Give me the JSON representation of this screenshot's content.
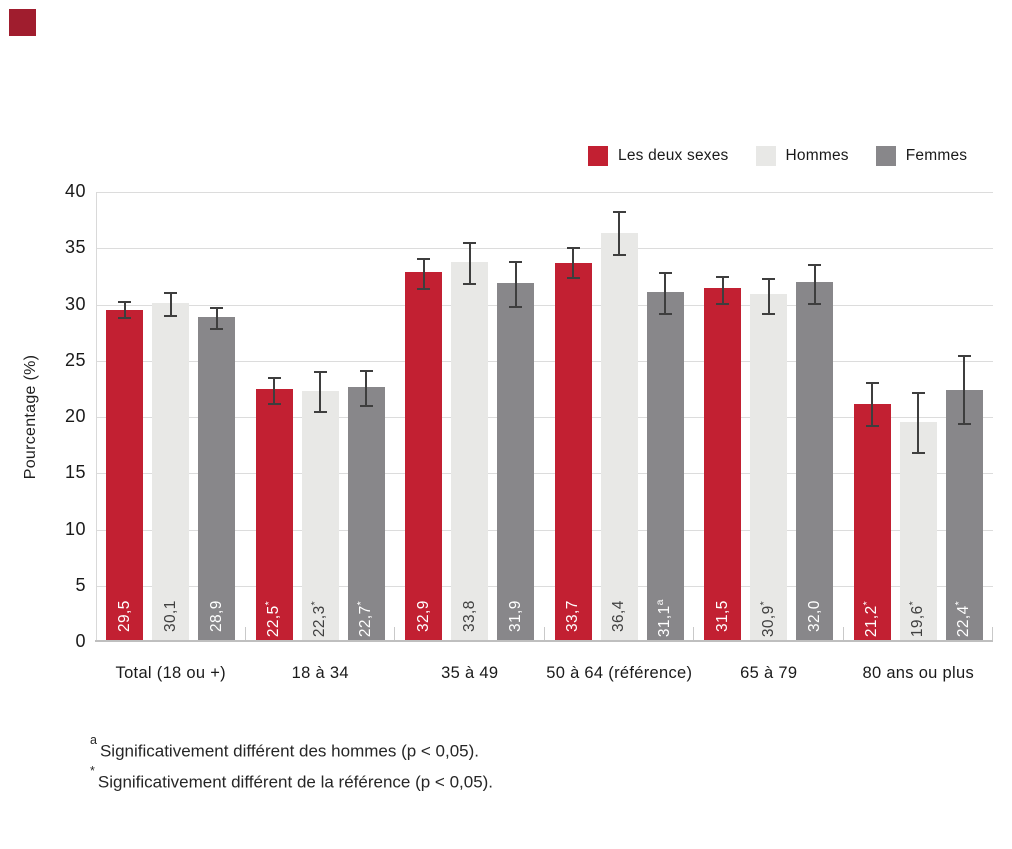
{
  "brand": {
    "color": "#a01d2e"
  },
  "chart_data": {
    "type": "bar",
    "title": "",
    "ylabel": "Pourcentage (%)",
    "xlabel": "",
    "ylim": [
      0,
      40
    ],
    "yticks": [
      0,
      5,
      10,
      15,
      20,
      25,
      30,
      35,
      40
    ],
    "grid": true,
    "legend_position": "top-right",
    "categories": [
      "Total (18 ou +)",
      "18 à 34",
      "35 à 49",
      "50 à 64 (référence)",
      "65 à 79",
      "80 ans ou plus"
    ],
    "series": [
      {
        "name": "Les deux sexes",
        "color": "#c22032",
        "label_color": "#ffffff",
        "values": [
          29.5,
          22.5,
          32.9,
          33.7,
          31.5,
          21.2
        ],
        "labels": [
          "29,5",
          "22,5",
          "32,9",
          "33,7",
          "31,5",
          "21,2"
        ],
        "flags": [
          "",
          "*",
          "",
          "",
          "",
          "*"
        ],
        "ci_low": [
          28.7,
          21.1,
          31.3,
          32.3,
          30.0,
          19.1
        ],
        "ci_high": [
          30.3,
          23.6,
          34.1,
          35.1,
          32.5,
          23.1
        ]
      },
      {
        "name": "Hommes",
        "color": "#e8e8e6",
        "label_color": "#404040",
        "values": [
          30.1,
          22.3,
          33.8,
          36.4,
          30.9,
          19.6
        ],
        "labels": [
          "30,1",
          "22,3",
          "33,8",
          "36,4",
          "30,9",
          "19,6"
        ],
        "flags": [
          "",
          "*",
          "",
          "",
          "*",
          "*"
        ],
        "ci_low": [
          28.9,
          20.4,
          31.7,
          34.3,
          29.1,
          16.7
        ],
        "ci_high": [
          31.1,
          24.1,
          35.6,
          38.3,
          32.4,
          22.2
        ]
      },
      {
        "name": "Femmes",
        "color": "#88878a",
        "label_color": "#ffffff",
        "values": [
          28.9,
          22.7,
          31.9,
          31.1,
          32.0,
          22.4
        ],
        "labels": [
          "28,9",
          "22,7",
          "31,9",
          "31,1",
          "32,0",
          "22,4"
        ],
        "flags": [
          "",
          "*",
          "",
          "a",
          "",
          "*"
        ],
        "ci_low": [
          27.7,
          20.9,
          29.7,
          29.1,
          30.0,
          19.3
        ],
        "ci_high": [
          29.8,
          24.2,
          33.9,
          32.9,
          33.6,
          25.5
        ]
      }
    ]
  },
  "footnotes": [
    {
      "marker": "a",
      "text": "Significativement différent des hommes (p < 0,05)."
    },
    {
      "marker": "*",
      "text": "Significativement différent de la référence (p < 0,05)."
    }
  ],
  "style_colors": {
    "grid": "#dcdcdc",
    "axis": "#bfbfbf",
    "error_bar": "#3e3e3e"
  }
}
